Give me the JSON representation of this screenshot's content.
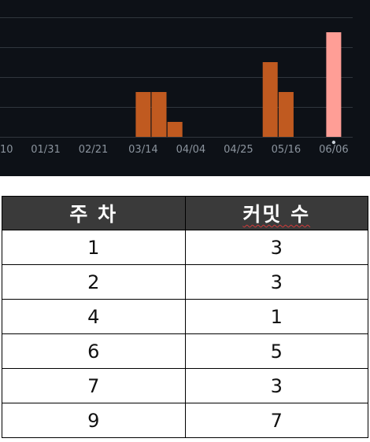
{
  "chart_data": {
    "type": "bar",
    "x_tick_labels": [
      "10",
      "01/31",
      "02/21",
      "03/14",
      "04/04",
      "04/25",
      "05/16",
      "06/06"
    ],
    "categories": [
      "03/14",
      "03/21",
      "03/28",
      "05/09",
      "05/16",
      "06/06"
    ],
    "values": [
      3,
      3,
      1,
      5,
      3,
      7
    ],
    "highlighted_category": "06/06",
    "ylim": [
      0,
      8
    ],
    "grid": true,
    "colors": {
      "bar": "#c05a20",
      "highlight": "#ff9e96",
      "grid": "#30363d",
      "background": "#0d1117",
      "tick": "#8b949e"
    }
  },
  "table": {
    "headers": [
      "주 차",
      "커밋 수"
    ],
    "rows": [
      [
        "1",
        "3"
      ],
      [
        "2",
        "3"
      ],
      [
        "4",
        "1"
      ],
      [
        "6",
        "5"
      ],
      [
        "7",
        "3"
      ],
      [
        "9",
        "7"
      ]
    ]
  }
}
